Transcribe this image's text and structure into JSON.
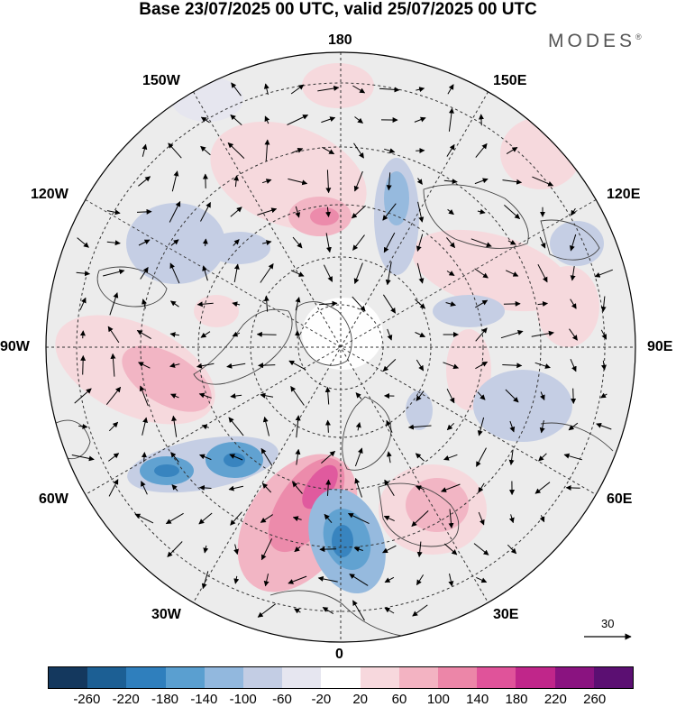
{
  "title": "Base 23/07/2025 00 UTC, valid 25/07/2025 00 UTC",
  "brand": "MODES",
  "brand_mark": "®",
  "longitude_labels": {
    "n180": "180",
    "w150": "150W",
    "e150": "150E",
    "w120": "120W",
    "e120": "120E",
    "w90": "90W",
    "e90": "90E",
    "w60": "60W",
    "e60": "60E",
    "w30": "30W",
    "e30": "30E",
    "s0": "0"
  },
  "reference_vector": {
    "label": "30",
    "value": 30
  },
  "colorbar": {
    "ticks": [
      "-260",
      "-220",
      "-180",
      "-140",
      "-100",
      "-60",
      "-20",
      "20",
      "60",
      "100",
      "140",
      "180",
      "220",
      "260"
    ],
    "colors": [
      "#14385e",
      "#1c5f94",
      "#2f7fbd",
      "#5a9fd0",
      "#92b8de",
      "#c3cde4",
      "#e6e6f0",
      "#ffffff",
      "#f7d8dd",
      "#f3b3c2",
      "#ec86a8",
      "#e0539a",
      "#c0268a",
      "#8a1380",
      "#5b0f72"
    ]
  },
  "colors": {
    "background": "#ffffff",
    "grid": "#333333",
    "land_outline": "#444444",
    "neutral_fill": "#ebebeb"
  }
}
